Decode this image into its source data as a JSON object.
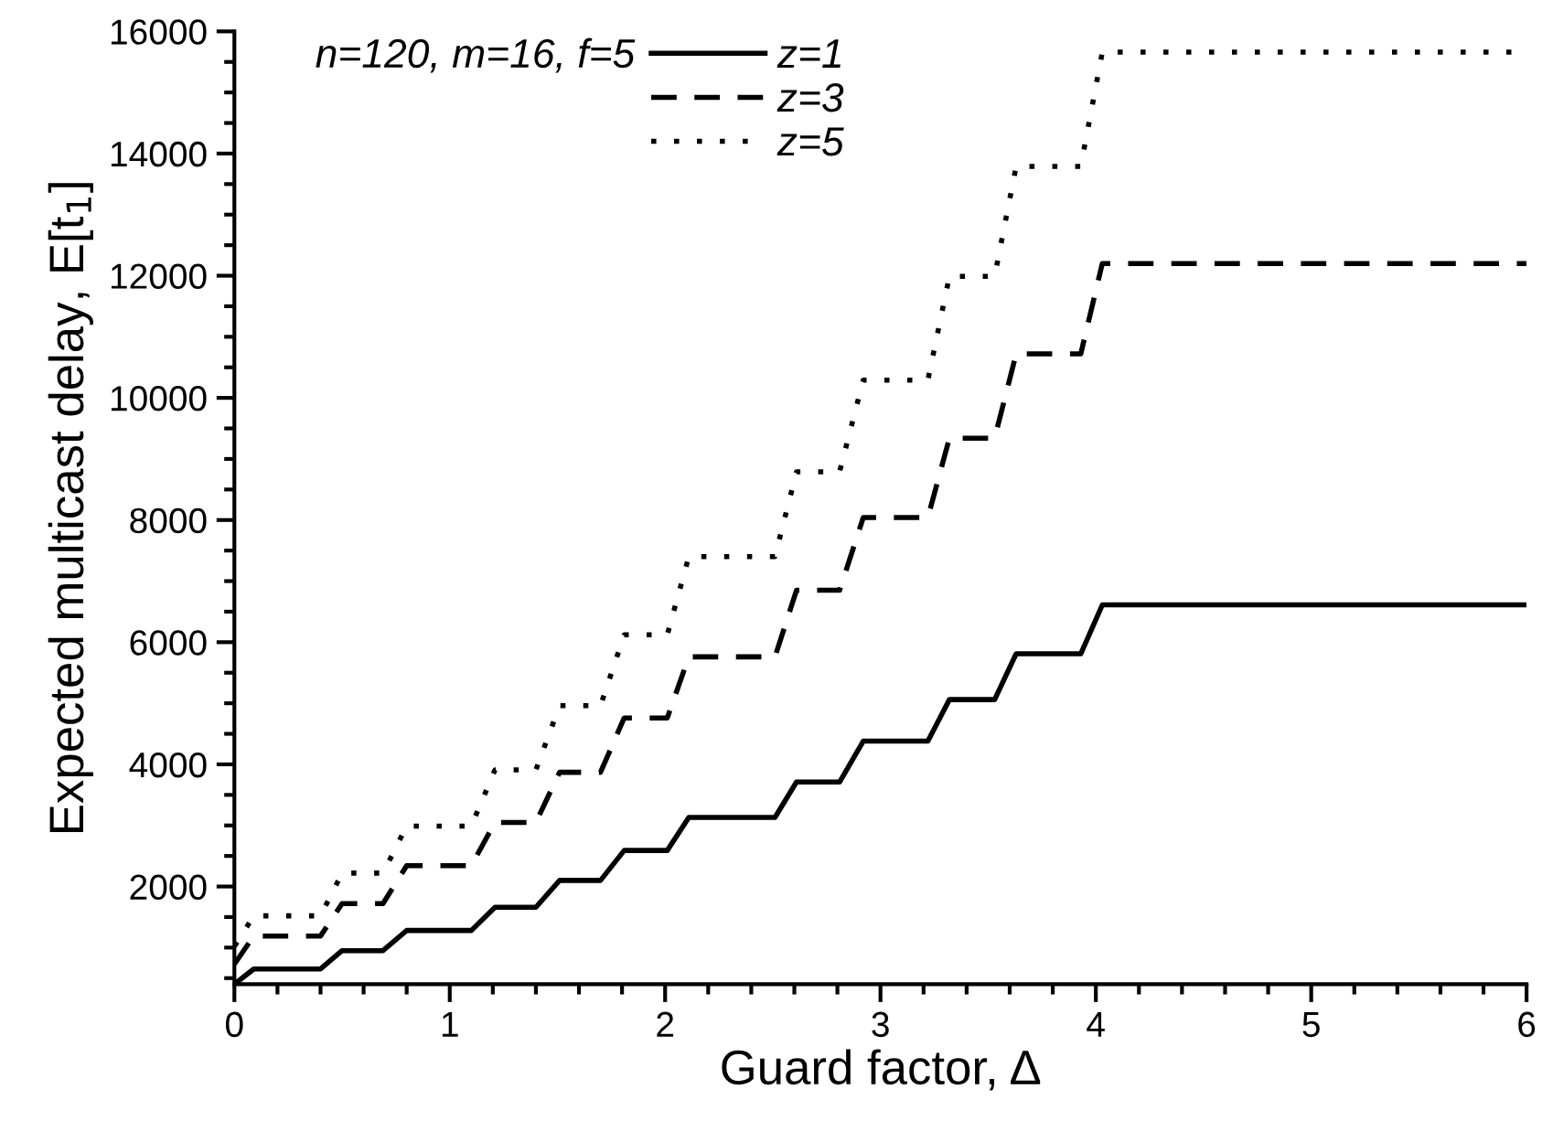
{
  "chart_data": {
    "type": "line",
    "xlabel": "Guard factor, Δ",
    "ylabel": "Expected multicast delay, E[t$_{1}$]",
    "legend_title": "n=120, m=16, f=5",
    "x": [
      0,
      0.09,
      0.4,
      0.5,
      0.69,
      0.8,
      1.1,
      1.21,
      1.4,
      1.51,
      1.7,
      1.81,
      2.01,
      2.11,
      2.51,
      2.61,
      2.81,
      2.92,
      3.22,
      3.32,
      3.53,
      3.63,
      3.93,
      4.03,
      6
    ],
    "series": [
      {
        "name": "z=1",
        "color": "#000000",
        "line_style": "solid",
        "values": [
          400,
          650,
          650,
          950,
          950,
          1280,
          1280,
          1660,
          1660,
          2100,
          2100,
          2590,
          2590,
          3130,
          3130,
          3710,
          3710,
          4380,
          4380,
          5060,
          5060,
          5810,
          5810,
          6610,
          6610
        ]
      },
      {
        "name": "z=3",
        "color": "#000000",
        "line_style": "dashed",
        "values": [
          730,
          1190,
          1190,
          1720,
          1720,
          2340,
          2340,
          3050,
          3050,
          3870,
          3870,
          4760,
          4760,
          5760,
          5760,
          6850,
          6850,
          8040,
          8040,
          9340,
          9340,
          10720,
          10720,
          12200,
          12200
        ]
      },
      {
        "name": "z=5",
        "color": "#000000",
        "line_style": "dotted",
        "values": [
          1020,
          1520,
          1520,
          2220,
          2220,
          2990,
          2990,
          3910,
          3910,
          4960,
          4960,
          6120,
          6120,
          7400,
          7400,
          8790,
          8790,
          10290,
          10290,
          11990,
          11990,
          13790,
          13790,
          15660,
          15660
        ]
      }
    ],
    "xlim": [
      0,
      6
    ],
    "xticks": [
      0,
      1,
      2,
      3,
      4,
      5,
      6
    ],
    "ylim": [
      400,
      16000
    ],
    "yticks": [
      2000,
      4000,
      6000,
      8000,
      10000,
      12000,
      14000,
      16000
    ],
    "grid": false,
    "legend": "top left",
    "marker": "none"
  }
}
